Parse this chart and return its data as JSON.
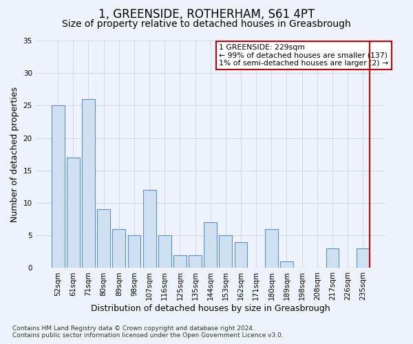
{
  "title": "1, GREENSIDE, ROTHERHAM, S61 4PT",
  "subtitle": "Size of property relative to detached houses in Greasbrough",
  "xlabel": "Distribution of detached houses by size in Greasbrough",
  "ylabel": "Number of detached properties",
  "categories": [
    "52sqm",
    "61sqm",
    "71sqm",
    "80sqm",
    "89sqm",
    "98sqm",
    "107sqm",
    "116sqm",
    "125sqm",
    "135sqm",
    "144sqm",
    "153sqm",
    "162sqm",
    "171sqm",
    "180sqm",
    "189sqm",
    "198sqm",
    "208sqm",
    "217sqm",
    "226sqm",
    "235sqm"
  ],
  "values": [
    25,
    17,
    26,
    9,
    6,
    5,
    12,
    5,
    2,
    2,
    7,
    5,
    4,
    0,
    6,
    1,
    0,
    0,
    3,
    0,
    3
  ],
  "bar_color": "#cfe0f0",
  "bar_edge_color": "#5b8fc9",
  "highlight_line_color": "#cc0000",
  "ylim": [
    0,
    35
  ],
  "yticks": [
    0,
    5,
    10,
    15,
    20,
    25,
    30,
    35
  ],
  "grid_color": "#d0d8e8",
  "background_color": "#eef2fa",
  "annotation_text": "1 GREENSIDE: 229sqm\n← 99% of detached houses are smaller (137)\n1% of semi-detached houses are larger (2) →",
  "annotation_box_color": "#ffffff",
  "annotation_border_color": "#cc0000",
  "footnote": "Contains HM Land Registry data © Crown copyright and database right 2024.\nContains public sector information licensed under the Open Government Licence v3.0.",
  "title_fontsize": 12,
  "subtitle_fontsize": 10,
  "ylabel_fontsize": 9,
  "xlabel_fontsize": 9,
  "tick_fontsize": 7.5,
  "footnote_fontsize": 6.5
}
